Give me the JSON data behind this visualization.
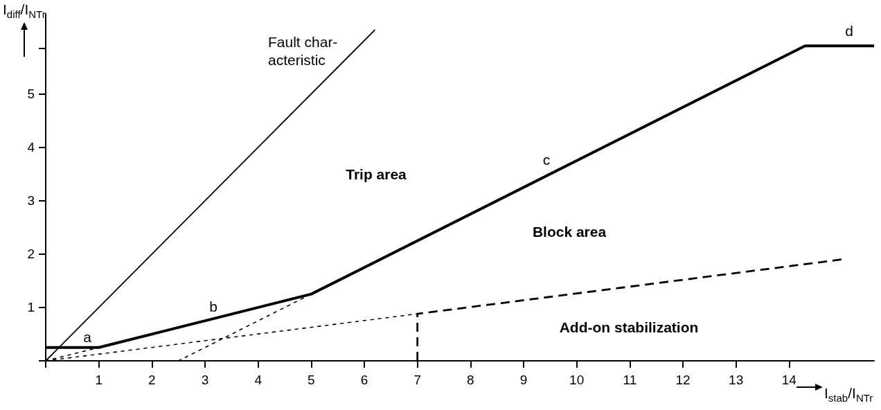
{
  "chart_data": {
    "type": "line",
    "xlabel": "I$_{stab}$/I$_{NTr}$",
    "ylabel": "I$_{diff}$/I$_{NTr}$",
    "series": [
      {
        "color": "#000000",
        "line_style": "solid",
        "x": [
          0,
          1,
          5,
          14.3,
          15.6
        ],
        "values": [
          0.25,
          0.25,
          1.25,
          5.9,
          5.9
        ]
      },
      {
        "color": "#000000",
        "line_style": "solid",
        "x": [
          0,
          6.2
        ],
        "values": [
          0,
          6.2
        ]
      },
      {
        "color": "#000000",
        "line_style": "dashed",
        "x": [
          7,
          7,
          15
        ],
        "values": [
          0,
          0.88,
          1.9
        ]
      },
      {
        "color": "#000000",
        "line_style": "dotted",
        "x": [
          0,
          7
        ],
        "values": [
          0,
          0.88
        ]
      },
      {
        "color": "#000000",
        "line_style": "dotted",
        "x": [
          0,
          1
        ],
        "values": [
          0,
          0.25
        ]
      },
      {
        "color": "#000000",
        "line_style": "dotted",
        "x": [
          2.5,
          5
        ],
        "values": [
          0,
          1.25
        ]
      }
    ],
    "annotations": [
      "Fault char-acteristic",
      "Trip area",
      "Block area",
      "Add-on stabilization",
      "a",
      "b",
      "c",
      "d"
    ],
    "xlim": [
      0,
      15.6
    ],
    "xticks": [
      {
        "value": 0,
        "label": null
      },
      1,
      2,
      3,
      4,
      5,
      6,
      7,
      8,
      9,
      10,
      11,
      12,
      13,
      14
    ],
    "ylim": [
      0,
      6.5
    ],
    "yticks": [
      {
        "value": 0,
        "label": null
      },
      1,
      2,
      3,
      4,
      5,
      {
        "value": 5.85,
        "label": null
      }
    ],
    "grid": false,
    "marker": "none"
  }
}
